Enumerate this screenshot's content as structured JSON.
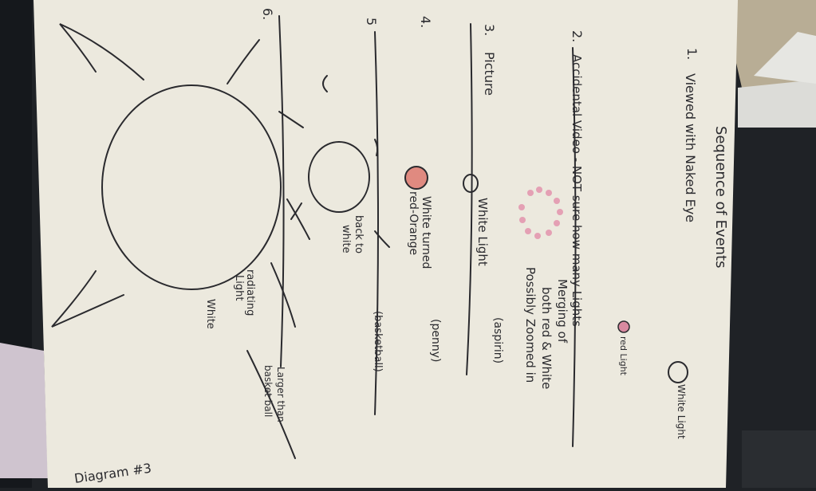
{
  "heading": "Sequence of Events",
  "steps": [
    {
      "number": "1.",
      "text": "Viewed with Naked Eye"
    },
    {
      "number": "2.",
      "text": "Accidental Video - NOT sure how many Lights"
    },
    {
      "number": "3.",
      "text": "Picture"
    },
    {
      "number": "4.",
      "text": ""
    },
    {
      "number": "5",
      "text": ""
    },
    {
      "number": "6.",
      "text": ""
    }
  ],
  "legend": {
    "white_light": "White Light",
    "red_light": "red Light"
  },
  "notes": {
    "merging_1": "Merging of",
    "merging_2": "both red & White",
    "merging_3": "Possibly Zoomed in",
    "white_light_label": "White Light",
    "aspirin": "(aspirin)",
    "white_turned_1": "White turned",
    "white_turned_2": "red-Orange",
    "penny": "(penny)",
    "back_to_1": "back to",
    "back_to_2": "white",
    "basketball": "(basketball)",
    "radiating_1": "radiating",
    "radiating_2": "Light",
    "larger_1": "Larger than",
    "larger_2": "basket ball",
    "white": "White"
  },
  "diagram_label": "Diagram #3",
  "colors": {
    "paper": "#ece9de",
    "ink": "#2a2a2e",
    "red_dot": "#e08a80",
    "pink_dot": "#d98aa0",
    "desk": "#1f2226"
  }
}
